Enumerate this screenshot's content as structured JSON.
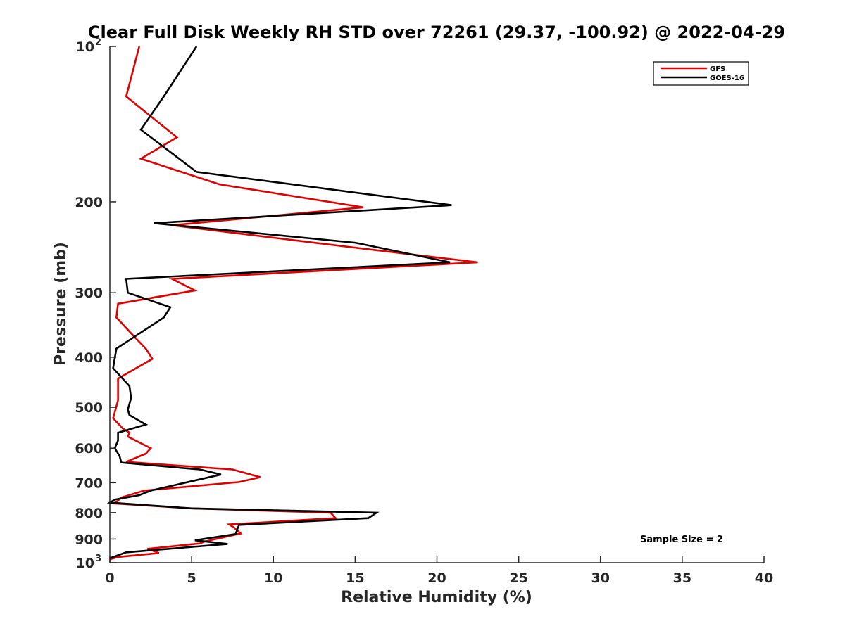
{
  "chart_data": {
    "type": "line",
    "title": "Clear Full Disk Weekly RH STD over 72261 (29.37, -100.92) @ 2022-04-29",
    "xlabel": "Relative Humidity (%)",
    "ylabel": "Pressure (mb)",
    "xlim": [
      0,
      40
    ],
    "ylim": [
      100,
      1000
    ],
    "y_scale": "log",
    "y_reversed": true,
    "x_ticks": [
      "0",
      "5",
      "10",
      "15",
      "20",
      "25",
      "30",
      "35",
      "40"
    ],
    "y_ticks": [
      {
        "value": 100,
        "label": "10",
        "sup": "2"
      },
      {
        "value": 200,
        "label": "200",
        "sup": ""
      },
      {
        "value": 300,
        "label": "300",
        "sup": ""
      },
      {
        "value": 400,
        "label": "400",
        "sup": ""
      },
      {
        "value": 500,
        "label": "500",
        "sup": ""
      },
      {
        "value": 600,
        "label": "600",
        "sup": ""
      },
      {
        "value": 700,
        "label": "700",
        "sup": ""
      },
      {
        "value": 800,
        "label": "800",
        "sup": ""
      },
      {
        "value": 900,
        "label": "900",
        "sup": ""
      },
      {
        "value": 1000,
        "label": "10",
        "sup": "3"
      }
    ],
    "legend_position": "top-right",
    "grid": false,
    "annotation": "Sample Size = 2",
    "series": [
      {
        "name": "GFS",
        "color": "#e00000",
        "points": [
          [
            1.8,
            100
          ],
          [
            1.0,
            125
          ],
          [
            4.1,
            150
          ],
          [
            1.9,
            165
          ],
          [
            6.7,
            185
          ],
          [
            15.5,
            205
          ],
          [
            3.8,
            222
          ],
          [
            12.5,
            240
          ],
          [
            22.5,
            262
          ],
          [
            3.8,
            282
          ],
          [
            5.2,
            297
          ],
          [
            0.5,
            315
          ],
          [
            0.4,
            335
          ],
          [
            1.5,
            365
          ],
          [
            2.2,
            385
          ],
          [
            2.6,
            403
          ],
          [
            0.5,
            440
          ],
          [
            0.5,
            485
          ],
          [
            0.2,
            525
          ],
          [
            0.8,
            550
          ],
          [
            1.2,
            560
          ],
          [
            1.1,
            570
          ],
          [
            2.5,
            600
          ],
          [
            2.2,
            615
          ],
          [
            1.0,
            638
          ],
          [
            7.5,
            660
          ],
          [
            9.2,
            683
          ],
          [
            7.9,
            698
          ],
          [
            2.1,
            725
          ],
          [
            0.7,
            748
          ],
          [
            0.3,
            768
          ],
          [
            5.0,
            785
          ],
          [
            13.5,
            800
          ],
          [
            13.8,
            820
          ],
          [
            7.3,
            843
          ],
          [
            7.6,
            855
          ],
          [
            8.0,
            878
          ],
          [
            5.8,
            910
          ],
          [
            5.5,
            918
          ],
          [
            2.3,
            940
          ],
          [
            3.0,
            958
          ],
          [
            0.5,
            975
          ],
          [
            0.0,
            985
          ]
        ]
      },
      {
        "name": "GOES-16",
        "color": "#000000",
        "points": [
          [
            5.3,
            100
          ],
          [
            3.3,
            125
          ],
          [
            1.9,
            145
          ],
          [
            5.3,
            175
          ],
          [
            20.9,
            203
          ],
          [
            2.7,
            220
          ],
          [
            15.0,
            240
          ],
          [
            20.8,
            262
          ],
          [
            1.0,
            282
          ],
          [
            1.1,
            300
          ],
          [
            3.7,
            320
          ],
          [
            3.3,
            335
          ],
          [
            0.4,
            385
          ],
          [
            0.2,
            420
          ],
          [
            1.2,
            455
          ],
          [
            1.3,
            480
          ],
          [
            1.1,
            505
          ],
          [
            1.2,
            518
          ],
          [
            2.2,
            540
          ],
          [
            0.5,
            560
          ],
          [
            0.5,
            580
          ],
          [
            0.3,
            600
          ],
          [
            0.6,
            622
          ],
          [
            0.7,
            640
          ],
          [
            5.5,
            660
          ],
          [
            6.8,
            675
          ],
          [
            2.5,
            725
          ],
          [
            1.8,
            740
          ],
          [
            0.3,
            755
          ],
          [
            0.0,
            765
          ],
          [
            5.0,
            785
          ],
          [
            16.3,
            800
          ],
          [
            15.8,
            820
          ],
          [
            7.9,
            845
          ],
          [
            7.8,
            860
          ],
          [
            7.7,
            880
          ],
          [
            5.2,
            905
          ],
          [
            7.2,
            920
          ],
          [
            1.0,
            955
          ],
          [
            0.0,
            980
          ]
        ]
      }
    ]
  }
}
